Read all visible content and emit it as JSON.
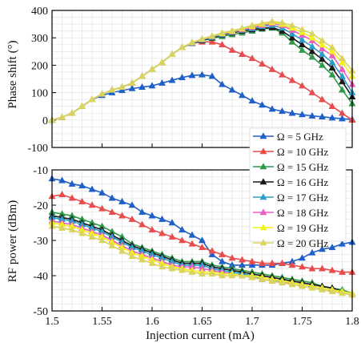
{
  "chart_data": [
    {
      "type": "line",
      "ylabel": "Phase shift (°)",
      "ylim": [
        -100,
        400
      ],
      "yticks": [
        -100,
        0,
        100,
        200,
        300,
        400
      ],
      "xlim": [
        1.5,
        1.8
      ],
      "grid": true,
      "x": [
        1.5,
        1.51,
        1.52,
        1.53,
        1.54,
        1.55,
        1.56,
        1.57,
        1.58,
        1.59,
        1.6,
        1.61,
        1.62,
        1.63,
        1.64,
        1.65,
        1.66,
        1.67,
        1.68,
        1.69,
        1.7,
        1.71,
        1.72,
        1.73,
        1.74,
        1.75,
        1.76,
        1.77,
        1.78,
        1.79,
        1.8
      ],
      "series": [
        {
          "name": "Ω = 5 GHz",
          "color": "#1f5fc8",
          "values": [
            0,
            10,
            25,
            50,
            75,
            90,
            100,
            108,
            115,
            120,
            125,
            135,
            145,
            155,
            163,
            165,
            160,
            130,
            110,
            90,
            70,
            55,
            40,
            32,
            25,
            20,
            15,
            12,
            8,
            5,
            2
          ]
        },
        {
          "name": "Ω = 10 GHz",
          "color": "#e84c4c",
          "values": [
            0,
            10,
            25,
            50,
            75,
            95,
            110,
            120,
            135,
            160,
            185,
            210,
            240,
            265,
            280,
            285,
            285,
            275,
            255,
            240,
            225,
            205,
            185,
            165,
            145,
            125,
            100,
            75,
            50,
            25,
            0
          ]
        },
        {
          "name": "Ω = 15 GHz",
          "color": "#2e9a4a",
          "values": [
            0,
            10,
            25,
            50,
            75,
            95,
            110,
            120,
            135,
            160,
            185,
            210,
            240,
            265,
            280,
            290,
            298,
            305,
            312,
            318,
            325,
            332,
            336,
            318,
            285,
            255,
            230,
            200,
            165,
            110,
            60
          ]
        },
        {
          "name": "Ω = 16 GHz",
          "color": "#1a1a1a",
          "values": [
            0,
            10,
            25,
            50,
            75,
            95,
            110,
            120,
            135,
            160,
            185,
            210,
            240,
            265,
            280,
            290,
            300,
            310,
            318,
            325,
            330,
            335,
            338,
            325,
            300,
            275,
            250,
            222,
            190,
            140,
            85
          ]
        },
        {
          "name": "Ω = 17 GHz",
          "color": "#2a9dc9",
          "values": [
            0,
            10,
            25,
            50,
            75,
            95,
            110,
            120,
            135,
            160,
            185,
            210,
            240,
            265,
            280,
            292,
            302,
            312,
            320,
            328,
            334,
            342,
            346,
            336,
            315,
            292,
            268,
            240,
            210,
            160,
            100
          ]
        },
        {
          "name": "Ω = 18 GHz",
          "color": "#e85fc0",
          "values": [
            0,
            10,
            25,
            50,
            75,
            95,
            110,
            120,
            135,
            160,
            185,
            210,
            240,
            265,
            282,
            294,
            305,
            315,
            322,
            330,
            338,
            346,
            352,
            345,
            328,
            310,
            290,
            260,
            235,
            185,
            130
          ]
        },
        {
          "name": "Ω = 19 GHz",
          "color": "#f2f21a",
          "values": [
            0,
            10,
            25,
            50,
            75,
            95,
            110,
            120,
            135,
            160,
            185,
            210,
            240,
            265,
            283,
            295,
            306,
            316,
            324,
            333,
            342,
            350,
            356,
            350,
            336,
            320,
            300,
            275,
            250,
            210,
            160
          ]
        },
        {
          "name": "Ω = 20 GHz",
          "color": "#d9d460",
          "values": [
            0,
            10,
            25,
            50,
            75,
            95,
            110,
            120,
            135,
            160,
            185,
            210,
            240,
            265,
            284,
            296,
            307,
            318,
            326,
            335,
            345,
            353,
            360,
            355,
            345,
            330,
            315,
            290,
            265,
            225,
            180
          ]
        }
      ]
    },
    {
      "type": "line",
      "xlabel": "Injection current (mA)",
      "ylabel": "RF power (dBm)",
      "ylim": [
        -50,
        -10
      ],
      "yticks": [
        -50,
        -40,
        -30,
        -20,
        -10
      ],
      "xlim": [
        1.5,
        1.8
      ],
      "xticks": [
        1.5,
        1.55,
        1.6,
        1.65,
        1.7,
        1.75,
        1.8
      ],
      "grid": true,
      "legend": "middle-right",
      "x": [
        1.5,
        1.51,
        1.52,
        1.53,
        1.54,
        1.55,
        1.56,
        1.57,
        1.58,
        1.59,
        1.6,
        1.61,
        1.62,
        1.63,
        1.64,
        1.65,
        1.66,
        1.67,
        1.68,
        1.69,
        1.7,
        1.71,
        1.72,
        1.73,
        1.74,
        1.75,
        1.76,
        1.77,
        1.78,
        1.79,
        1.8
      ],
      "series": [
        {
          "name": "Ω = 5 GHz",
          "color": "#1f5fc8",
          "values": [
            -12.5,
            -13,
            -14,
            -14.5,
            -15.5,
            -16.5,
            -18,
            -19,
            -20,
            -22,
            -23,
            -24,
            -25,
            -27,
            -28.5,
            -30,
            -34,
            -36,
            -37,
            -37,
            -37,
            -37,
            -37,
            -36.5,
            -36,
            -35,
            -33.5,
            -32.5,
            -32,
            -31,
            -30.5
          ]
        },
        {
          "name": "Ω = 10 GHz",
          "color": "#e84c4c",
          "values": [
            -17.5,
            -17,
            -18,
            -19,
            -20,
            -21,
            -22,
            -23,
            -24,
            -25.5,
            -27,
            -28,
            -29,
            -30,
            -31,
            -32,
            -33,
            -34,
            -35,
            -35.5,
            -36,
            -36.5,
            -36.5,
            -36.5,
            -37,
            -37.5,
            -38,
            -38,
            -38.5,
            -39,
            -39
          ]
        },
        {
          "name": "Ω = 15 GHz",
          "color": "#2e9a4a",
          "values": [
            -22,
            -22.5,
            -23,
            -24,
            -25,
            -26,
            -27.5,
            -29,
            -31,
            -32,
            -33,
            -34,
            -35,
            -36,
            -36,
            -36,
            -37,
            -37.5,
            -38,
            -38.5,
            -39,
            -39.5,
            -40,
            -40.5,
            -41,
            -41.5,
            -42,
            -43,
            -43.5,
            -44,
            -45
          ]
        },
        {
          "name": "Ω = 16 GHz",
          "color": "#1a1a1a",
          "values": [
            -23,
            -23.5,
            -24,
            -25,
            -26,
            -27,
            -28.5,
            -30,
            -31.5,
            -32.5,
            -33.5,
            -34.5,
            -35.5,
            -36.5,
            -36.5,
            -36.5,
            -37.5,
            -38,
            -38.5,
            -39,
            -39.5,
            -40,
            -40.5,
            -41,
            -41.5,
            -42,
            -42.5,
            -43,
            -43.5,
            -44.5,
            -45
          ]
        },
        {
          "name": "Ω = 17 GHz",
          "color": "#2a9dc9",
          "values": [
            -23.5,
            -24,
            -24.5,
            -25.5,
            -26.5,
            -27.5,
            -29,
            -30.5,
            -32,
            -33,
            -34,
            -35,
            -36,
            -37,
            -37,
            -37,
            -38,
            -38.5,
            -39,
            -39.5,
            -40,
            -41,
            -41.5,
            -41.5,
            -42,
            -42.5,
            -43,
            -43.5,
            -44,
            -44.5,
            -45
          ]
        },
        {
          "name": "Ω = 18 GHz",
          "color": "#e85fc0",
          "values": [
            -24.5,
            -25,
            -25.5,
            -26.5,
            -27.5,
            -28.5,
            -30,
            -31.5,
            -33,
            -34,
            -35,
            -36,
            -37,
            -37.5,
            -37.5,
            -38,
            -38.5,
            -39,
            -39.5,
            -40,
            -40.5,
            -41,
            -41.5,
            -42,
            -42,
            -42.5,
            -43,
            -43.5,
            -44,
            -44.5,
            -45
          ]
        },
        {
          "name": "Ω = 19 GHz",
          "color": "#f2f21a",
          "values": [
            -25,
            -25.5,
            -26,
            -27,
            -28,
            -29,
            -30.5,
            -32,
            -33.5,
            -34.5,
            -35.5,
            -36.5,
            -37.5,
            -38,
            -38.5,
            -39,
            -39,
            -39.5,
            -39.5,
            -40,
            -40,
            -40.5,
            -41,
            -41.5,
            -42,
            -42.5,
            -43,
            -43.5,
            -44,
            -44.5,
            -45
          ]
        },
        {
          "name": "Ω = 20 GHz",
          "color": "#d9d460",
          "values": [
            -26,
            -26.5,
            -27,
            -28,
            -29,
            -30,
            -31.5,
            -33,
            -34.5,
            -35.5,
            -36.5,
            -37.5,
            -38,
            -38.5,
            -39,
            -39.5,
            -39.5,
            -40,
            -40,
            -40,
            -40.5,
            -41,
            -41.5,
            -42,
            -42.5,
            -43,
            -43.5,
            -44,
            -44.5,
            -45,
            -45.5
          ]
        }
      ]
    }
  ],
  "legend_labels": [
    "Ω = 5 GHz",
    "Ω = 10 GHz",
    "Ω = 15 GHz",
    "Ω = 16 GHz",
    "Ω = 17 GHz",
    "Ω = 18 GHz",
    "Ω = 19 GHz",
    "Ω = 20 GHz"
  ]
}
